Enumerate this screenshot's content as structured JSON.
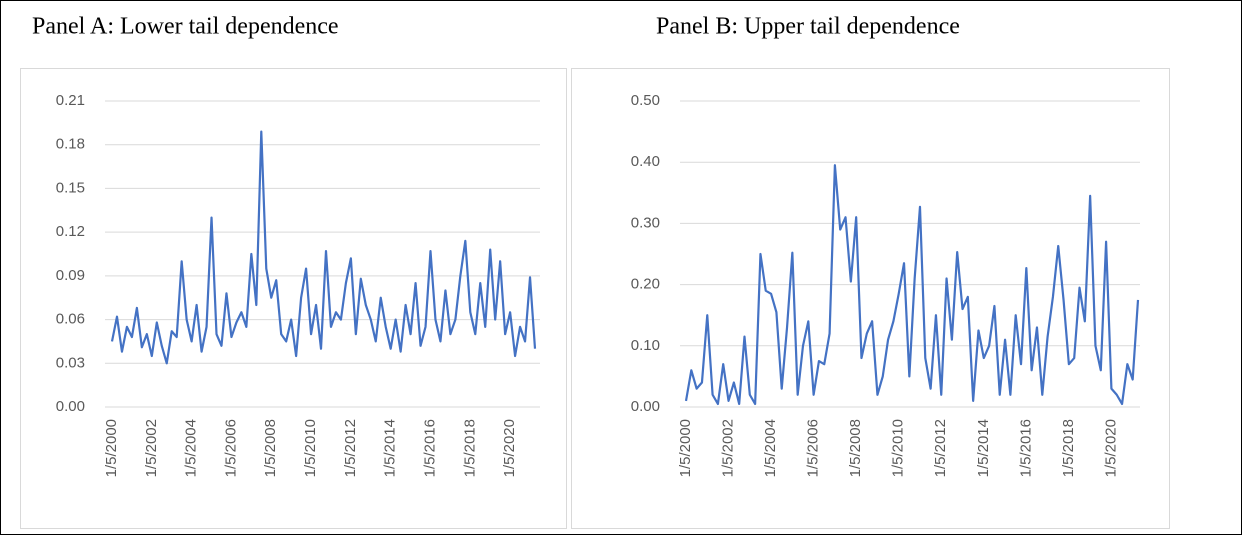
{
  "chart_data": [
    {
      "type": "line",
      "title": "Panel A: Lower tail dependence",
      "categories": [
        "1/5/2000",
        null,
        null,
        null,
        null,
        null,
        null,
        null,
        "1/5/2002",
        null,
        null,
        null,
        null,
        null,
        null,
        null,
        "1/5/2004",
        null,
        null,
        null,
        null,
        null,
        null,
        null,
        "1/5/2006",
        null,
        null,
        null,
        null,
        null,
        null,
        null,
        "1/5/2008",
        null,
        null,
        null,
        null,
        null,
        null,
        null,
        "1/5/2010",
        null,
        null,
        null,
        null,
        null,
        null,
        null,
        "1/5/2012",
        null,
        null,
        null,
        null,
        null,
        null,
        null,
        "1/5/2014",
        null,
        null,
        null,
        null,
        null,
        null,
        null,
        "1/5/2016",
        null,
        null,
        null,
        null,
        null,
        null,
        null,
        "1/5/2018",
        null,
        null,
        null,
        null,
        null,
        null,
        null,
        "1/5/2020",
        null,
        null,
        null,
        null,
        null
      ],
      "values": [
        0.045,
        0.062,
        0.038,
        0.055,
        0.048,
        0.068,
        0.041,
        0.05,
        0.035,
        0.058,
        0.042,
        0.03,
        0.052,
        0.048,
        0.1,
        0.06,
        0.045,
        0.07,
        0.038,
        0.055,
        0.13,
        0.05,
        0.042,
        0.078,
        0.048,
        0.058,
        0.065,
        0.055,
        0.105,
        0.07,
        0.189,
        0.095,
        0.075,
        0.087,
        0.05,
        0.045,
        0.06,
        0.035,
        0.075,
        0.095,
        0.05,
        0.07,
        0.04,
        0.107,
        0.055,
        0.065,
        0.06,
        0.085,
        0.102,
        0.05,
        0.088,
        0.07,
        0.06,
        0.045,
        0.075,
        0.055,
        0.04,
        0.06,
        0.038,
        0.07,
        0.05,
        0.085,
        0.042,
        0.055,
        0.107,
        0.06,
        0.045,
        0.08,
        0.05,
        0.06,
        0.09,
        0.114,
        0.065,
        0.05,
        0.085,
        0.055,
        0.108,
        0.06,
        0.1,
        0.05,
        0.065,
        0.035,
        0.055,
        0.045,
        0.089,
        0.04
      ],
      "color": "#4472c4",
      "ylim": [
        0,
        0.21
      ],
      "yticks": [
        {
          "value": 0,
          "label": "0.00"
        },
        {
          "value": 0.03,
          "label": "0.03"
        },
        {
          "value": 0.06,
          "label": "0.06"
        },
        {
          "value": 0.09,
          "label": "0.09"
        },
        {
          "value": 0.12,
          "label": "0.12"
        },
        {
          "value": 0.15,
          "label": "0.15"
        },
        {
          "value": 0.18,
          "label": "0.18"
        },
        {
          "value": 0.21,
          "label": "0.21"
        }
      ],
      "grid": true
    },
    {
      "type": "line",
      "title": "Panel B: Upper tail dependence",
      "categories": [
        "1/5/2000",
        null,
        null,
        null,
        null,
        null,
        null,
        null,
        "1/5/2002",
        null,
        null,
        null,
        null,
        null,
        null,
        null,
        "1/5/2004",
        null,
        null,
        null,
        null,
        null,
        null,
        null,
        "1/5/2006",
        null,
        null,
        null,
        null,
        null,
        null,
        null,
        "1/5/2008",
        null,
        null,
        null,
        null,
        null,
        null,
        null,
        "1/5/2010",
        null,
        null,
        null,
        null,
        null,
        null,
        null,
        "1/5/2012",
        null,
        null,
        null,
        null,
        null,
        null,
        null,
        "1/5/2014",
        null,
        null,
        null,
        null,
        null,
        null,
        null,
        "1/5/2016",
        null,
        null,
        null,
        null,
        null,
        null,
        null,
        "1/5/2018",
        null,
        null,
        null,
        null,
        null,
        null,
        null,
        "1/5/2020",
        null,
        null,
        null,
        null,
        null
      ],
      "values": [
        0.01,
        0.06,
        0.03,
        0.04,
        0.15,
        0.02,
        0.005,
        0.07,
        0.01,
        0.04,
        0.005,
        0.115,
        0.02,
        0.005,
        0.25,
        0.19,
        0.185,
        0.155,
        0.03,
        0.13,
        0.252,
        0.02,
        0.1,
        0.14,
        0.02,
        0.075,
        0.07,
        0.12,
        0.395,
        0.29,
        0.31,
        0.205,
        0.31,
        0.08,
        0.12,
        0.14,
        0.02,
        0.05,
        0.11,
        0.14,
        0.185,
        0.235,
        0.05,
        0.21,
        0.327,
        0.08,
        0.03,
        0.15,
        0.02,
        0.21,
        0.11,
        0.253,
        0.16,
        0.18,
        0.01,
        0.125,
        0.08,
        0.1,
        0.165,
        0.02,
        0.11,
        0.02,
        0.15,
        0.07,
        0.227,
        0.06,
        0.13,
        0.02,
        0.115,
        0.18,
        0.263,
        0.175,
        0.07,
        0.08,
        0.195,
        0.14,
        0.345,
        0.1,
        0.06,
        0.27,
        0.03,
        0.02,
        0.005,
        0.07,
        0.045,
        0.175
      ],
      "color": "#4472c4",
      "ylim": [
        0,
        0.5
      ],
      "yticks": [
        {
          "value": 0,
          "label": "0.00"
        },
        {
          "value": 0.1,
          "label": "0.10"
        },
        {
          "value": 0.2,
          "label": "0.20"
        },
        {
          "value": 0.3,
          "label": "0.30"
        },
        {
          "value": 0.4,
          "label": "0.40"
        },
        {
          "value": 0.5,
          "label": "0.50"
        }
      ],
      "grid": true
    }
  ]
}
